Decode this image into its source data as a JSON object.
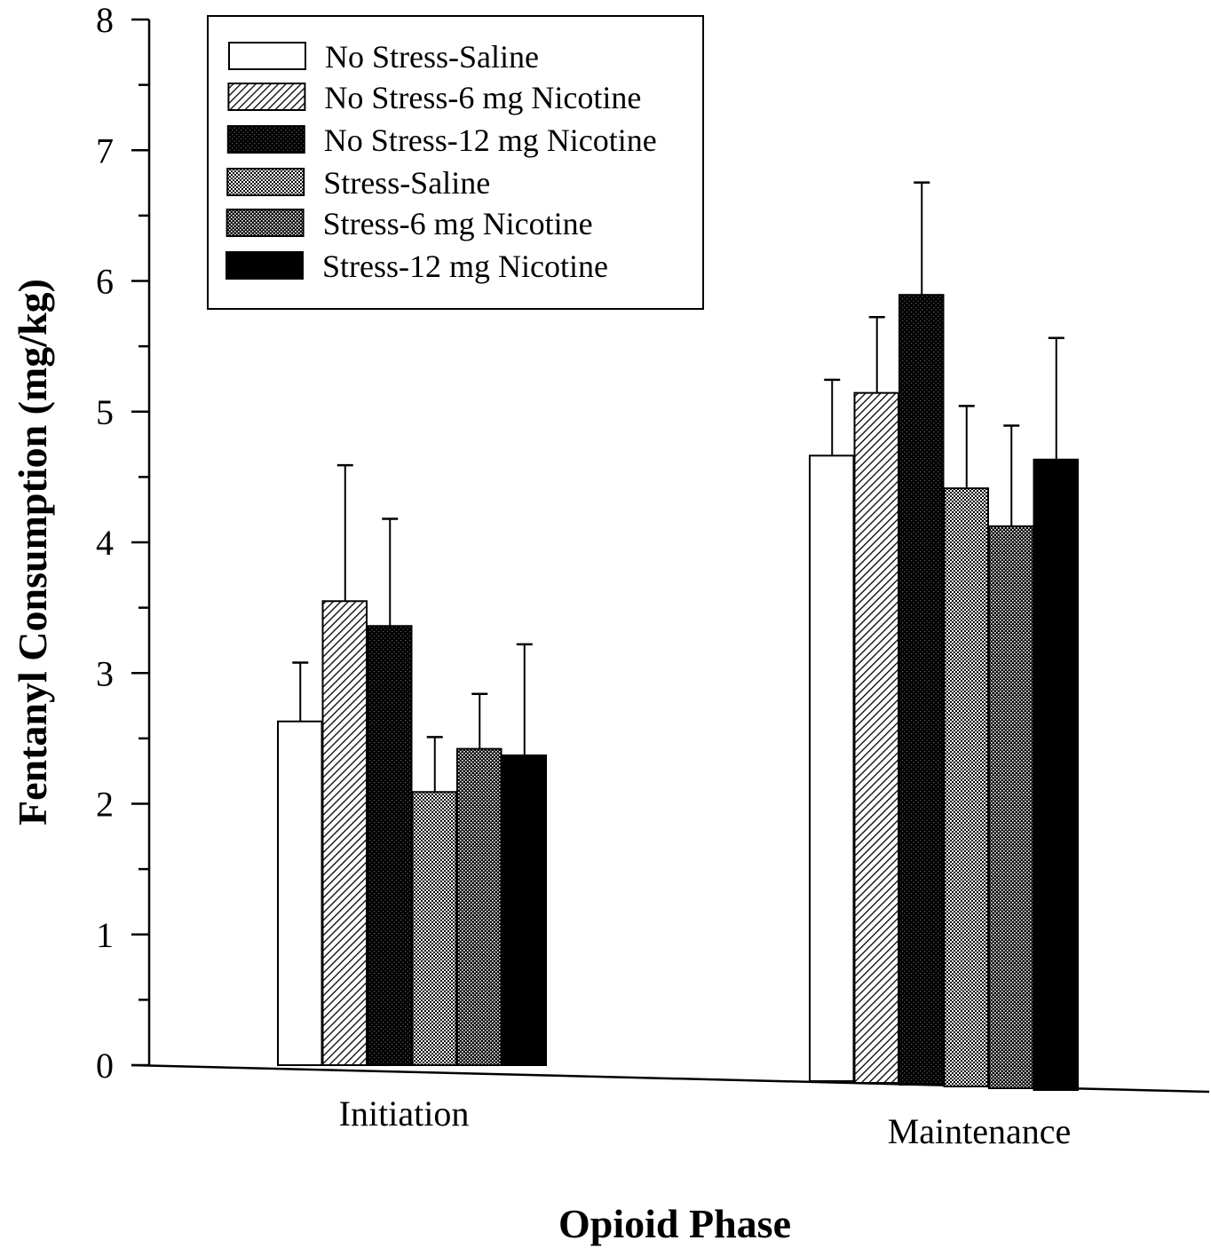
{
  "chart_data": {
    "type": "bar",
    "title": "",
    "xlabel": "Opioid Phase",
    "ylabel": "Fentanyl Consumption (mg/kg)",
    "ylim": [
      0,
      8
    ],
    "yticks": [
      "0",
      "1",
      "2",
      "3",
      "4",
      "5",
      "6",
      "7",
      "8"
    ],
    "categories": [
      "Initiation",
      "Maintenance"
    ],
    "error_bars": "upper",
    "legend_position": "top-left",
    "grid": false,
    "series": [
      {
        "name": "No Stress-Saline",
        "values": [
          2.63,
          4.7
        ],
        "errors": [
          0.45,
          0.58
        ],
        "fill": "white-fill",
        "color": "#ffffff"
      },
      {
        "name": "No Stress-6 mg Nicotine",
        "values": [
          3.55,
          5.18
        ],
        "errors": [
          1.04,
          0.58
        ],
        "fill": "diagonal-hatch",
        "color": "#9a9a9a"
      },
      {
        "name": "No Stress-12 mg Nicotine",
        "values": [
          3.36,
          5.93
        ],
        "errors": [
          0.82,
          0.86
        ],
        "fill": "dark-dots",
        "color": "#1a1a1a"
      },
      {
        "name": "Stress-Saline",
        "values": [
          2.09,
          4.45
        ],
        "errors": [
          0.42,
          0.63
        ],
        "fill": "light-dots",
        "color": "#a8a8a8"
      },
      {
        "name": "Stress-6 mg Nicotine",
        "values": [
          2.42,
          4.16
        ],
        "errors": [
          0.42,
          0.77
        ],
        "fill": "medium-dots",
        "color": "#5a5a5a"
      },
      {
        "name": "Stress-12 mg Nicotine",
        "values": [
          2.37,
          4.67
        ],
        "errors": [
          0.85,
          0.93
        ],
        "fill": "solid-black",
        "color": "#000000"
      }
    ]
  }
}
